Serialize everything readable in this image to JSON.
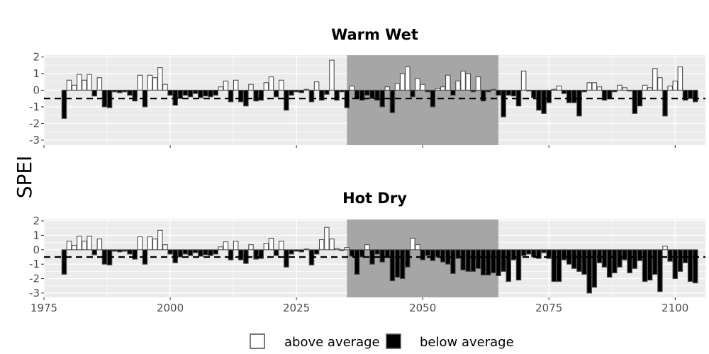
{
  "chart_data": {
    "type": "bar",
    "ylabel": "SPEI",
    "x_ticks": [
      1975,
      2000,
      2025,
      2050,
      2075,
      2100
    ],
    "y_ticks": [
      2,
      1,
      0,
      -1,
      -2,
      -3
    ],
    "xlim": [
      1975,
      2106
    ],
    "ylim": [
      -3.3,
      2.1
    ],
    "reference_line": -0.5,
    "highlight_range": [
      2035,
      2065
    ],
    "colors": {
      "above": "#ffffff",
      "below": "#000000",
      "bar_outline": "#4d4d4d",
      "panel_bg": "#ebebeb",
      "grid": "#ffffff",
      "highlight": "#a6a6a6"
    },
    "legend": {
      "placement": "bottom",
      "entries": [
        {
          "key": "above",
          "label": "above average"
        },
        {
          "key": "below",
          "label": "below average"
        }
      ]
    },
    "panels": [
      {
        "title": "Warm Wet",
        "start_year": 1979,
        "values": [
          -1.7,
          0.6,
          0.3,
          0.95,
          0.6,
          0.95,
          -0.35,
          0.75,
          -1.0,
          -1.05,
          -0.1,
          -0.15,
          -0.1,
          -0.3,
          -0.65,
          0.9,
          -1.0,
          0.9,
          0.75,
          1.35,
          0.35,
          -0.3,
          -0.9,
          -0.5,
          -0.3,
          -0.4,
          -0.2,
          -0.45,
          -0.35,
          -0.4,
          -0.3,
          0.2,
          0.55,
          -0.7,
          0.6,
          -0.7,
          -0.95,
          0.35,
          -0.65,
          -0.6,
          0.45,
          0.8,
          -0.4,
          0.6,
          -1.2,
          -0.3,
          -0.1,
          -0.15,
          0.05,
          -0.7,
          0.5,
          -0.6,
          -0.25,
          1.8,
          -0.6,
          -0.1,
          -1.05,
          0.25,
          -0.5,
          -0.6,
          -0.3,
          -0.5,
          -0.6,
          -1.0,
          0.2,
          -1.35,
          0.4,
          1.0,
          1.4,
          -0.4,
          0.7,
          0.35,
          -0.1,
          -1.0,
          0.1,
          0.2,
          0.9,
          -0.3,
          0.55,
          1.15,
          1.0,
          -0.1,
          0.8,
          -0.65,
          -0.1,
          0.05,
          -0.3,
          -1.6,
          -0.3,
          -0.35,
          -0.95,
          1.15,
          -0.05,
          -0.45,
          -1.2,
          -1.4,
          -0.75,
          0.05,
          0.25,
          -0.2,
          -0.75,
          -0.75,
          -1.55,
          -0.1,
          0.45,
          0.45,
          0.2,
          -0.6,
          -0.5,
          -0.1,
          0.3,
          0.15,
          -0.05,
          -1.4,
          -0.95,
          0.3,
          0.15,
          1.3,
          0.75,
          -1.55,
          0.25,
          0.55,
          1.4,
          -0.6,
          -0.5,
          -0.7
        ]
      },
      {
        "title": "Hot Dry",
        "start_year": 1979,
        "values": [
          -1.7,
          0.6,
          0.3,
          0.95,
          0.6,
          0.95,
          -0.35,
          0.75,
          -1.0,
          -1.05,
          -0.1,
          -0.15,
          -0.1,
          -0.3,
          -0.65,
          0.9,
          -1.0,
          0.9,
          0.75,
          1.35,
          0.35,
          -0.3,
          -0.9,
          -0.5,
          -0.3,
          -0.4,
          -0.2,
          -0.45,
          -0.35,
          -0.4,
          -0.3,
          0.2,
          0.55,
          -0.7,
          0.6,
          -0.7,
          -0.95,
          0.35,
          -0.65,
          -0.6,
          0.45,
          0.8,
          -0.4,
          0.6,
          -1.2,
          -0.3,
          -0.1,
          -0.15,
          0.05,
          -1.05,
          -0.3,
          0.7,
          1.55,
          0.75,
          0.1,
          -0.05,
          0.15,
          -0.45,
          -1.7,
          -0.5,
          0.35,
          -1.0,
          -0.3,
          -0.85,
          -0.5,
          -2.15,
          -1.9,
          -2.0,
          -1.2,
          0.8,
          0.35,
          -0.7,
          -0.4,
          -0.75,
          -0.5,
          -0.85,
          -1.0,
          -1.65,
          -0.6,
          -1.4,
          -1.5,
          -1.5,
          -1.3,
          -1.75,
          -1.75,
          -1.6,
          -1.8,
          -1.5,
          -2.2,
          -0.7,
          -2.1,
          -0.4,
          -0.3,
          -0.5,
          -0.6,
          -0.2,
          -0.6,
          -2.2,
          -2.2,
          -0.7,
          -1.0,
          -1.3,
          -1.5,
          -1.7,
          -3.0,
          -2.6,
          -0.9,
          -1.2,
          -1.9,
          -1.6,
          -1.2,
          -0.7,
          -1.6,
          -1.3,
          -0.75,
          -2.2,
          -2.1,
          -1.7,
          -2.9,
          0.25,
          -0.8,
          -2.0,
          -1.5,
          -0.9,
          -2.2,
          -2.3
        ]
      }
    ]
  }
}
